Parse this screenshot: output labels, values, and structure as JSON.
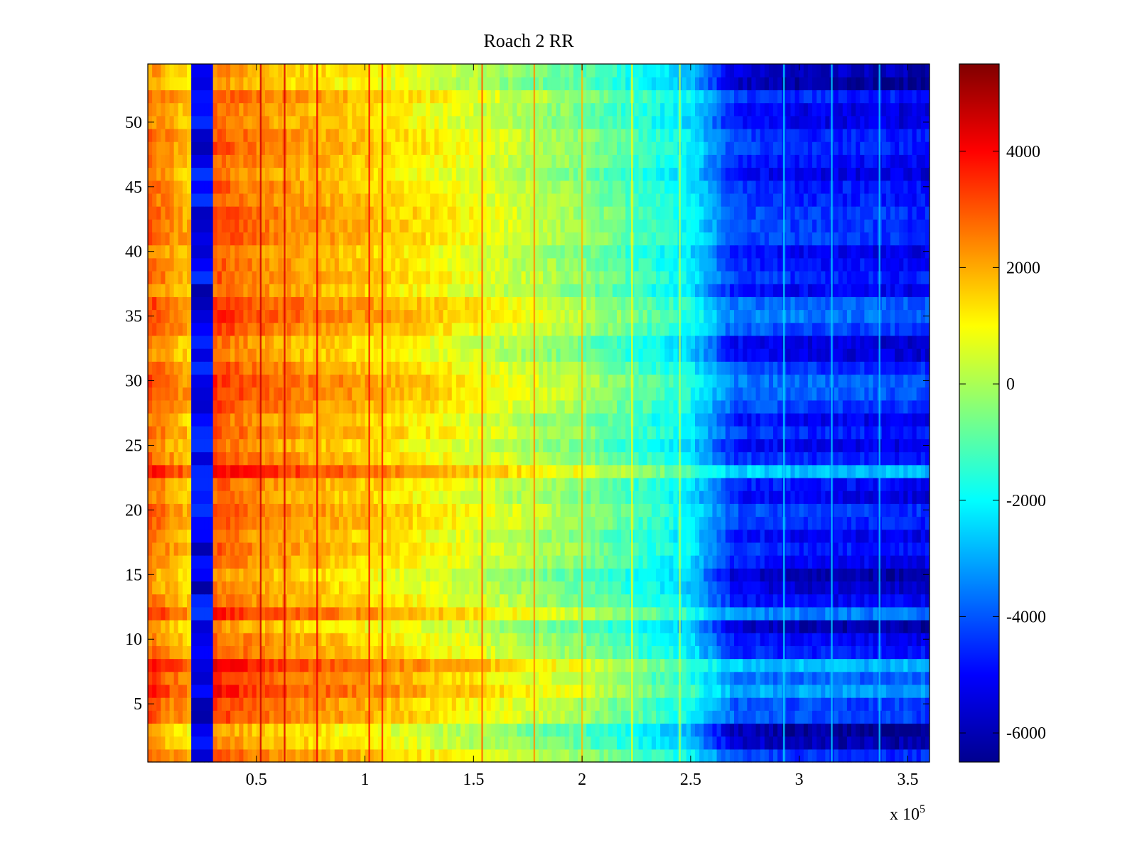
{
  "chart_data": {
    "type": "heatmap",
    "title": "Roach 2 RR",
    "xlabel": "",
    "ylabel": "",
    "x_exponent_label": "x 10",
    "x_exponent_power": "5",
    "xlim": [
      0,
      3.6
    ],
    "ylim": [
      0.5,
      54.5
    ],
    "x_ticks": [
      0.5,
      1,
      1.5,
      2,
      2.5,
      3,
      3.5
    ],
    "x_tick_labels": [
      "0.5",
      "1",
      "1.5",
      "2",
      "2.5",
      "3",
      "3.5"
    ],
    "y_ticks": [
      5,
      10,
      15,
      20,
      25,
      30,
      35,
      40,
      45,
      50
    ],
    "y_tick_labels": [
      "5",
      "10",
      "15",
      "20",
      "25",
      "30",
      "35",
      "40",
      "45",
      "50"
    ],
    "colormap": "jet",
    "colorbar": {
      "range": [
        -6500,
        5500
      ],
      "ticks": [
        -6000,
        -4000,
        -2000,
        0,
        2000,
        4000
      ],
      "tick_labels": [
        "-6000",
        "-4000",
        "-2000",
        "0",
        "2000",
        "4000"
      ]
    },
    "rows": 54,
    "columns_x_1e5": [
      0.0,
      0.2,
      0.25,
      0.3,
      0.5,
      1.0,
      1.5,
      2.0,
      2.5,
      2.7,
      3.0,
      3.6
    ],
    "mean_profile_values": [
      2800,
      1600,
      -6000,
      3000,
      2400,
      1600,
      700,
      -400,
      -2200,
      -4500,
      -4800,
      -5000
    ],
    "notable_rows": {
      "hot_rows": [
        6,
        7,
        8,
        12,
        23,
        28,
        29,
        30,
        35,
        36
      ],
      "cool_rows": [
        2,
        3,
        28,
        53,
        54
      ],
      "neutral_rows": [
        10,
        11,
        14,
        15
      ]
    },
    "vertical_stripe_x_1e5": [
      0.52,
      0.63,
      0.78,
      1.02,
      1.08,
      1.54,
      1.78,
      2.0,
      2.23,
      2.45,
      2.93,
      3.15,
      3.37
    ]
  }
}
